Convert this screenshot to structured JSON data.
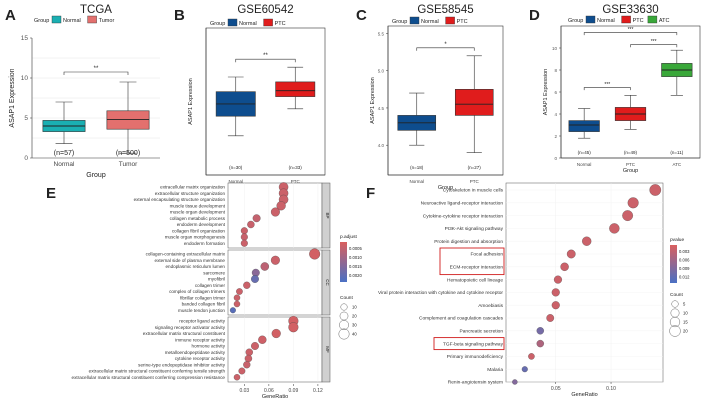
{
  "panels": {
    "A": {
      "letter": "A",
      "title": "TCGA",
      "legend_title": "Group",
      "group_label": "Group",
      "ylabel": "ASAP1 Expression",
      "ylim": [
        0,
        15
      ],
      "yticks": [
        "0",
        "5",
        "10",
        "15"
      ],
      "sig": "**",
      "boxes": [
        {
          "name": "Normal",
          "n": "(n=57)",
          "whislo": 1.8,
          "q1": 3.3,
          "med": 4.0,
          "q3": 4.7,
          "whishi": 7.0,
          "fliers": []
        },
        {
          "name": "Tumor",
          "n": "(n=500)",
          "whislo": 0.6,
          "q1": 3.6,
          "med": 4.8,
          "q3": 5.9,
          "whishi": 9.5,
          "fliers": []
        }
      ]
    },
    "B": {
      "letter": "B",
      "title": "GSE60542",
      "legend_title": "Group",
      "group_label": "Group",
      "ylabel": "ASAP1 Expression",
      "ylim": [
        5.6,
        8.6
      ],
      "yticks": [],
      "sig": "**",
      "boxes": [
        {
          "name": "Normal",
          "n": "(n=30)",
          "whislo": 6.4,
          "q1": 6.8,
          "med": 7.05,
          "q3": 7.3,
          "whishi": 7.6,
          "fliers": []
        },
        {
          "name": "PTC",
          "n": "(n=33)",
          "whislo": 6.95,
          "q1": 7.2,
          "med": 7.32,
          "q3": 7.5,
          "whishi": 7.8,
          "fliers": []
        }
      ]
    },
    "C": {
      "letter": "C",
      "title": "GSE58545",
      "legend_title": "Group",
      "group_label": "Group",
      "ylabel": "ASAP1 Expression",
      "ylim": [
        3.6,
        5.6
      ],
      "yticks": [
        "4.0",
        "4.5",
        "5.0",
        "5.5"
      ],
      "sig": "*",
      "boxes": [
        {
          "name": "Normal",
          "n": "(n=18)",
          "whislo": 4.0,
          "q1": 4.2,
          "med": 4.3,
          "q3": 4.4,
          "whishi": 4.7,
          "fliers": []
        },
        {
          "name": "PTC",
          "n": "(n=27)",
          "whislo": 3.9,
          "q1": 4.4,
          "med": 4.55,
          "q3": 4.75,
          "whishi": 5.2,
          "fliers": []
        }
      ]
    },
    "D": {
      "letter": "D",
      "title": "GSE33630",
      "legend_title": "Group",
      "group_label": "Group",
      "ylabel": "ASAP1 Expression",
      "ylim": [
        0,
        12
      ],
      "yticks": [
        "0",
        "2",
        "4",
        "6",
        "8",
        "10"
      ],
      "sig_pairs": [
        "***",
        "***",
        "***"
      ],
      "boxes": [
        {
          "name": "Normal",
          "n": "(n=45)",
          "whislo": 1.8,
          "q1": 2.4,
          "med": 3.0,
          "q3": 3.4,
          "whishi": 4.5,
          "fliers": []
        },
        {
          "name": "PTC",
          "n": "(n=49)",
          "whislo": 2.6,
          "q1": 3.4,
          "med": 4.0,
          "q3": 4.6,
          "whishi": 5.7,
          "fliers": []
        },
        {
          "name": "ATC",
          "n": "(n=11)",
          "whislo": 5.7,
          "q1": 7.4,
          "med": 8.0,
          "q3": 8.6,
          "whishi": 9.8,
          "fliers": []
        }
      ]
    }
  },
  "legends": {
    "A": [
      "Normal",
      "Tumor"
    ],
    "B": [
      "Normal",
      "PTC"
    ],
    "C": [
      "Normal",
      "PTC"
    ],
    "D": [
      "Normal",
      "PTC",
      "ATC"
    ]
  },
  "colors": {
    "A_normal": "#1aafb2",
    "A_tumor": "#e3706e",
    "blue": "#0e4d8e",
    "red": "#e01c1c",
    "green": "#3aa83a",
    "dot_high": "#d95f5f",
    "dot_low": "#4a70c4"
  },
  "dotE": {
    "letter": "E",
    "xlabel": "GeneRatio",
    "xticks": [
      "0.03",
      "0.06",
      "0.09",
      "0.12"
    ],
    "xlim": [
      0.01,
      0.125
    ],
    "legend_title": "p.adjust",
    "legend_ticks": [
      "0.0005",
      "0.0010",
      "0.0015",
      "0.0020"
    ],
    "count_title": "Count",
    "count_ticks": [
      "10",
      "20",
      "30",
      "40"
    ],
    "groups": [
      {
        "strip": "BP",
        "terms": [
          {
            "label": "extracellular matrix organization",
            "x": 0.078,
            "c": 0.1,
            "size": 28
          },
          {
            "label": "extracellular structure organization",
            "x": 0.078,
            "c": 0.1,
            "size": 28
          },
          {
            "label": "external encapsulating structure organization",
            "x": 0.078,
            "c": 0.1,
            "size": 28
          },
          {
            "label": "muscle tissue development",
            "x": 0.075,
            "c": 0.1,
            "size": 26
          },
          {
            "label": "muscle organ development",
            "x": 0.068,
            "c": 0.1,
            "size": 24
          },
          {
            "label": "collagen metabolic process",
            "x": 0.045,
            "c": 0.15,
            "size": 16
          },
          {
            "label": "endoderm development",
            "x": 0.038,
            "c": 0.12,
            "size": 13
          },
          {
            "label": "collagen fibril organization",
            "x": 0.03,
            "c": 0.1,
            "size": 11
          },
          {
            "label": "muscle organ morphogenesis",
            "x": 0.03,
            "c": 0.12,
            "size": 11
          },
          {
            "label": "endoderm formation",
            "x": 0.03,
            "c": 0.1,
            "size": 11
          }
        ]
      },
      {
        "strip": "CC",
        "terms": [
          {
            "label": "collagen-containing extracellular matrix",
            "x": 0.116,
            "c": 0.05,
            "size": 42
          },
          {
            "label": "external side of plasma membrane",
            "x": 0.068,
            "c": 0.1,
            "size": 24
          },
          {
            "label": "endoplasmic reticulum lumen",
            "x": 0.055,
            "c": 0.2,
            "size": 20
          },
          {
            "label": "sarcomere",
            "x": 0.044,
            "c": 0.55,
            "size": 16
          },
          {
            "label": "myofibril",
            "x": 0.043,
            "c": 0.8,
            "size": 16
          },
          {
            "label": "collagen trimer",
            "x": 0.033,
            "c": 0.1,
            "size": 12
          },
          {
            "label": "complex of collagen trimers",
            "x": 0.024,
            "c": 0.1,
            "size": 9
          },
          {
            "label": "fibrillar collagen trimer",
            "x": 0.021,
            "c": 0.1,
            "size": 8
          },
          {
            "label": "banded collagen fibril",
            "x": 0.021,
            "c": 0.1,
            "size": 8
          },
          {
            "label": "muscle tendon junction",
            "x": 0.016,
            "c": 0.9,
            "size": 6
          }
        ]
      },
      {
        "strip": "MF",
        "terms": [
          {
            "label": "receptor ligand activity",
            "x": 0.09,
            "c": 0.05,
            "size": 33
          },
          {
            "label": "signaling receptor activator activity",
            "x": 0.09,
            "c": 0.05,
            "size": 33
          },
          {
            "label": "extracellular matrix structural constituent",
            "x": 0.069,
            "c": 0.05,
            "size": 25
          },
          {
            "label": "immune receptor activity",
            "x": 0.052,
            "c": 0.08,
            "size": 19
          },
          {
            "label": "hormone activity",
            "x": 0.043,
            "c": 0.1,
            "size": 16
          },
          {
            "label": "metalloendopeptidase activity",
            "x": 0.036,
            "c": 0.1,
            "size": 13
          },
          {
            "label": "cytokine receptor activity",
            "x": 0.035,
            "c": 0.1,
            "size": 13
          },
          {
            "label": "serine-type endopeptidase inhibitor activity",
            "x": 0.033,
            "c": 0.12,
            "size": 12
          },
          {
            "label": "extracellular matrix structural constituent conferring tensile strength",
            "x": 0.027,
            "c": 0.1,
            "size": 10
          },
          {
            "label": "extracellular matrix structural constituent conferring compression resistance",
            "x": 0.021,
            "c": 0.1,
            "size": 8
          }
        ]
      }
    ]
  },
  "dotF": {
    "letter": "F",
    "xlabel": "GeneRatio",
    "xticks": [
      "0.05",
      "0.10"
    ],
    "xlim": [
      0.005,
      0.147
    ],
    "legend_title": "pvalue",
    "legend_ticks": [
      "0.003",
      "0.006",
      "0.009",
      "0.012"
    ],
    "count_title": "Count",
    "count_ticks": [
      "5",
      "10",
      "15",
      "20"
    ],
    "highlight": [
      "Focal adhesion",
      "ECM-receptor interaction",
      "TGF-beta signaling pathway"
    ],
    "terms": [
      {
        "label": "Cytoskeleton in muscle cells",
        "x": 0.14,
        "c": 0.1,
        "size": 22
      },
      {
        "label": "Neuroactive ligand-receptor interaction",
        "x": 0.12,
        "c": 0.1,
        "size": 19
      },
      {
        "label": "Cytokine-cytokine receptor interaction",
        "x": 0.115,
        "c": 0.1,
        "size": 18
      },
      {
        "label": "PI3K-Akt signaling pathway",
        "x": 0.103,
        "c": 0.1,
        "size": 16
      },
      {
        "label": "Protein digestion and absorption",
        "x": 0.078,
        "c": 0.1,
        "size": 12
      },
      {
        "label": "Focal adhesion",
        "x": 0.064,
        "c": 0.1,
        "size": 10
      },
      {
        "label": "ECM-receptor interaction",
        "x": 0.058,
        "c": 0.1,
        "size": 9
      },
      {
        "label": "Hematopoietic cell lineage",
        "x": 0.052,
        "c": 0.1,
        "size": 8
      },
      {
        "label": "Viral protein interaction with cytokine and cytokine receptor",
        "x": 0.05,
        "c": 0.1,
        "size": 8
      },
      {
        "label": "Amoebiasis",
        "x": 0.05,
        "c": 0.1,
        "size": 8
      },
      {
        "label": "Complement and coagulation cascades",
        "x": 0.045,
        "c": 0.1,
        "size": 7
      },
      {
        "label": "Pancreatic secretion",
        "x": 0.036,
        "c": 0.7,
        "size": 6
      },
      {
        "label": "TGF-beta signaling pathway",
        "x": 0.036,
        "c": 0.3,
        "size": 6
      },
      {
        "label": "Primary immunodeficiency",
        "x": 0.028,
        "c": 0.1,
        "size": 4
      },
      {
        "label": "Malaria",
        "x": 0.022,
        "c": 0.8,
        "size": 3
      },
      {
        "label": "Renin-angiotensin system",
        "x": 0.013,
        "c": 0.6,
        "size": 2
      }
    ]
  }
}
